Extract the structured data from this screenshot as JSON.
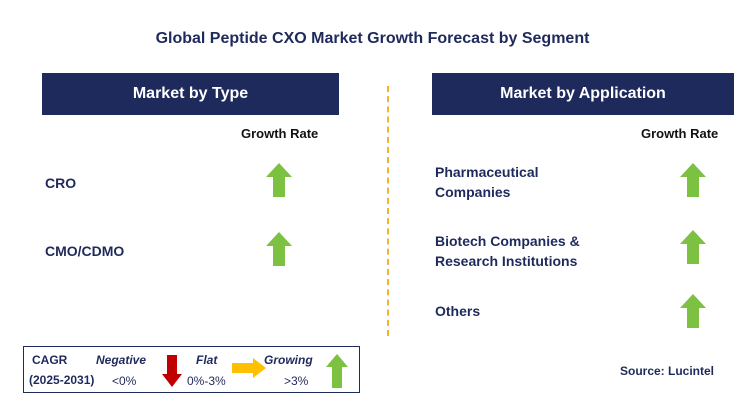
{
  "title": "Global Peptide CXO Market Growth Forecast by Segment",
  "left_panel": {
    "header": "Market by Type",
    "growth_label": "Growth Rate",
    "rows": [
      {
        "label": "CRO",
        "trend": "growing"
      },
      {
        "label": "CMO/CDMO",
        "trend": "growing"
      }
    ]
  },
  "right_panel": {
    "header": "Market by Application",
    "growth_label": "Growth Rate",
    "rows": [
      {
        "label_line1": "Pharmaceutical",
        "label_line2": "Companies",
        "trend": "growing"
      },
      {
        "label_line1": "Biotech Companies &",
        "label_line2": "Research Institutions",
        "trend": "growing"
      },
      {
        "label_line1": "Others",
        "label_line2": "",
        "trend": "growing"
      }
    ]
  },
  "legend": {
    "cagr": "CAGR",
    "period": "(2025-2031)",
    "negative_label": "Negative",
    "negative_range": "<0%",
    "flat_label": "Flat",
    "flat_range": "0%-3%",
    "growing_label": "Growing",
    "growing_range": ">3%"
  },
  "source": "Source: Lucintel",
  "colors": {
    "navy": "#1f2a5c",
    "green_arrow": "#7dc142",
    "red_arrow": "#c00000",
    "yellow_arrow": "#ffc000",
    "divider": "#f3b32a"
  },
  "icons": {
    "growing": "green-up-arrow-icon",
    "negative": "red-down-arrow-icon",
    "flat": "yellow-right-arrow-icon"
  }
}
